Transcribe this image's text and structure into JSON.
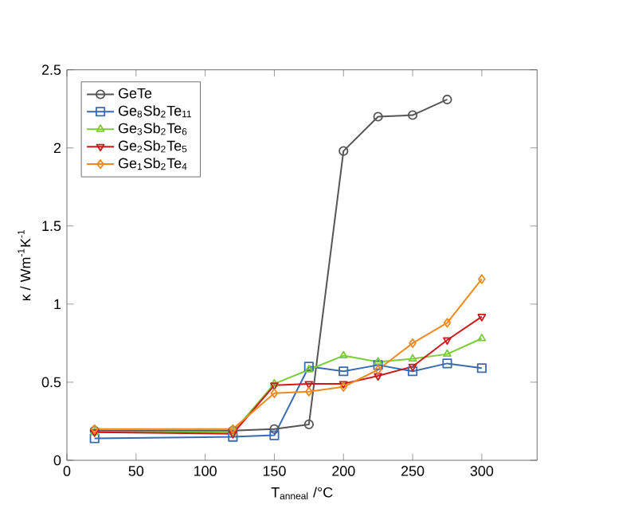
{
  "chart_data": {
    "type": "line",
    "xlabel": "T$_{anneal}$ /°C",
    "ylabel": "κ / Wm$^{-1}$K$^{-1}$",
    "xlim": [
      0,
      340
    ],
    "xticks": [
      0,
      50,
      100,
      150,
      200,
      250,
      300
    ],
    "ylim": [
      0,
      2.5
    ],
    "yticks": [
      0,
      0.5,
      1,
      1.5,
      2,
      2.5
    ],
    "grid": false,
    "legend": "top left",
    "line_style": "solid",
    "series": [
      {
        "name": "GeTe",
        "color": "#555555",
        "marker": "circle",
        "x": [
          20,
          120,
          150,
          175,
          200,
          225,
          250,
          275
        ],
        "values": [
          0.19,
          0.19,
          0.2,
          0.23,
          1.98,
          2.2,
          2.21,
          2.31
        ]
      },
      {
        "name": "Ge$_{8}$Sb$_{2}$Te$_{11}$",
        "color": "#3a6ab0",
        "marker": "square",
        "x": [
          20,
          120,
          150,
          175,
          200,
          225,
          250,
          275,
          300
        ],
        "values": [
          0.14,
          0.15,
          0.16,
          0.6,
          0.57,
          0.61,
          0.57,
          0.62,
          0.59
        ]
      },
      {
        "name": "Ge$_{3}$Sb$_{2}$Te$_{6}$",
        "color": "#7ccc3a",
        "marker": "triangle",
        "x": [
          20,
          120,
          150,
          175,
          200,
          225,
          250,
          275,
          300
        ],
        "values": [
          0.18,
          0.18,
          0.49,
          0.58,
          0.67,
          0.63,
          0.65,
          0.68,
          0.78
        ]
      },
      {
        "name": "Ge$_{2}$Sb$_{2}$Te$_{5}$",
        "color": "#cc1a1a",
        "marker": "triangle_down",
        "x": [
          20,
          120,
          150,
          175,
          200,
          225,
          250,
          275,
          300
        ],
        "values": [
          0.18,
          0.17,
          0.48,
          0.49,
          0.49,
          0.54,
          0.6,
          0.77,
          0.92
        ]
      },
      {
        "name": "Ge$_{1}$Sb$_{2}$Te$_{4}$",
        "color": "#f08a1c",
        "marker": "diamond",
        "x": [
          20,
          120,
          150,
          175,
          200,
          225,
          250,
          275,
          300
        ],
        "values": [
          0.2,
          0.2,
          0.43,
          0.44,
          0.47,
          0.58,
          0.75,
          0.88,
          1.16
        ]
      }
    ]
  }
}
